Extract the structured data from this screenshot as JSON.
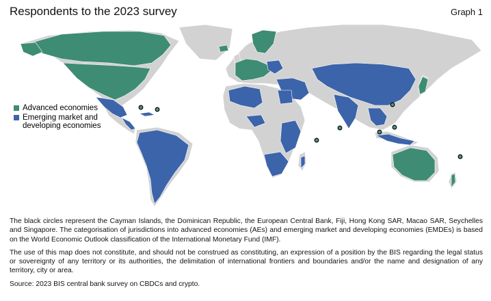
{
  "header": {
    "title": "Respondents to the 2023 survey",
    "graph_label": "Graph 1"
  },
  "legend": [
    {
      "label": "Advanced economies",
      "color": "#3e8c74"
    },
    {
      "label": "Emerging market and developing economies",
      "color": "#3c64aa"
    }
  ],
  "map": {
    "colors": {
      "land": "#d2d2d2",
      "advanced": "#3e8c74",
      "emerging": "#3c64aa",
      "marker_fill": "#4e9a78",
      "marker_stroke": "#111111"
    }
  },
  "notes": {
    "markers_note": "The black circles represent the Cayman Islands, the Dominican Republic, the European Central Bank, Fiji, Hong Kong SAR, Macao SAR, Seychelles and Singapore. The categorisation of jurisdictions into advanced economies (AEs) and emerging market and developing economies (EMDEs) is based on the World Economic Outlook classification of the International Monetary Fund (IMF).",
    "disclaimer": "The use of this map does not constitute, and should not be construed as constituting, an expression of a position by the BIS regarding the legal status or sovereignty of any territory or its authorities, the delimitation of international frontiers and boundaries and/or the name and designation of any territory, city or area.",
    "source": "Source: 2023 BIS central bank survey on CBDCs and crypto."
  }
}
